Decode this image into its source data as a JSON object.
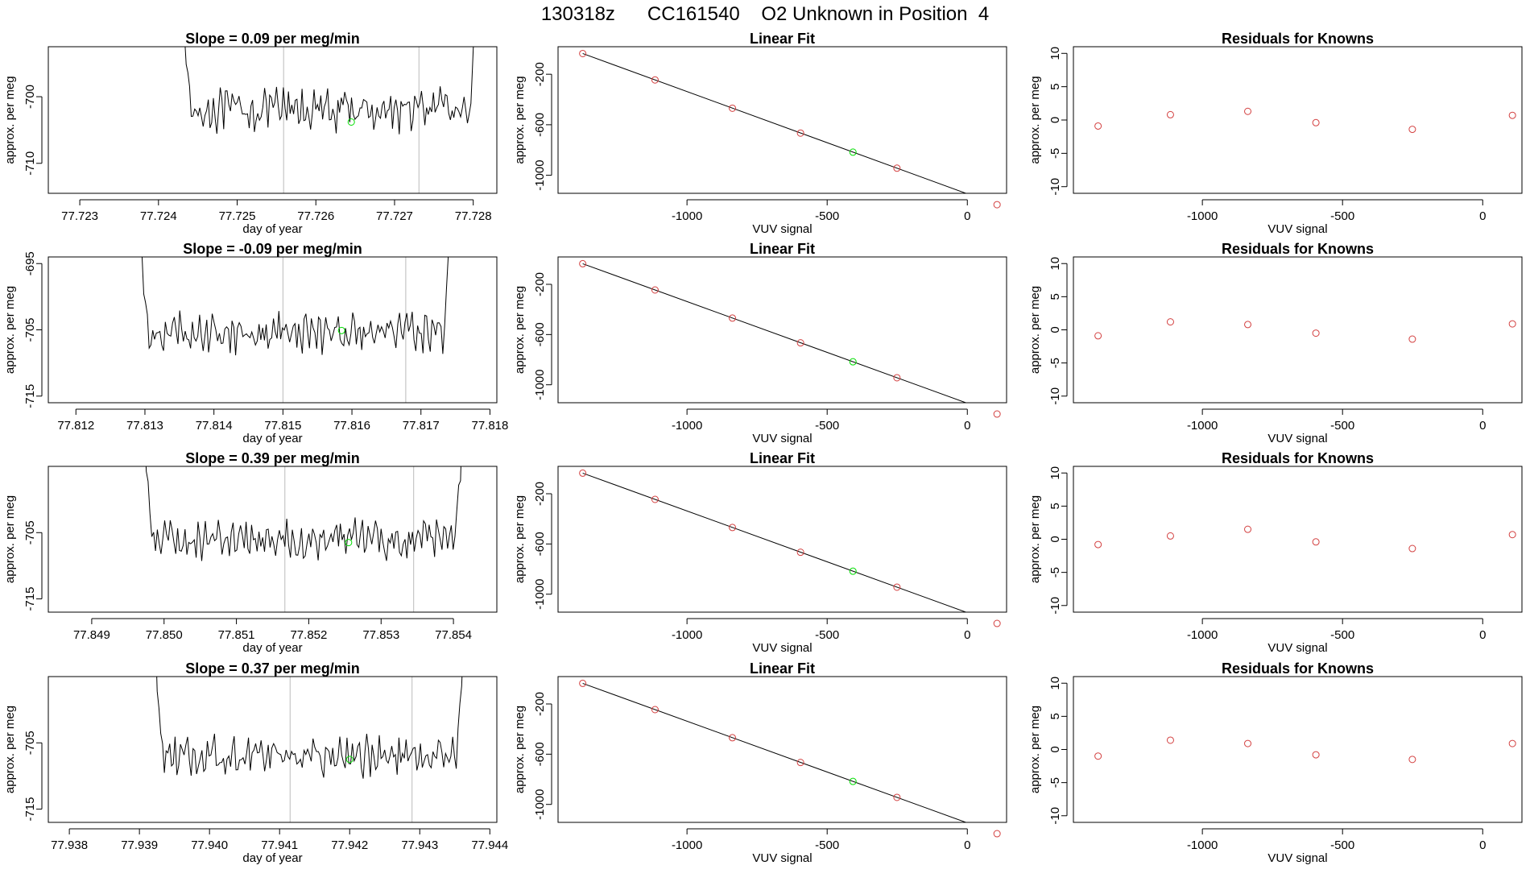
{
  "page_title": "130318z      CC161540    O2 Unknown in Position  4",
  "colors": {
    "trace": "#000000",
    "known_marker": "#d33f3f",
    "unknown_marker": "#00dd00",
    "cut_line": "#bbbbbb"
  },
  "chart_data": [
    {
      "type": "line",
      "row": 0,
      "column": "trace",
      "title": "Slope =  0.09  per meg/min",
      "xlabel": "day of year",
      "ylabel": "approx. per meg",
      "xlim": [
        77.7226,
        77.7283
      ],
      "ylim": [
        -714.5,
        -692.5
      ],
      "xticks": [
        77.723,
        77.724,
        77.725,
        77.726,
        77.727,
        77.728
      ],
      "xtick_labels": [
        "77.723",
        "77.724",
        "77.725",
        "77.726",
        "77.727",
        "77.728"
      ],
      "yticks": [
        -700,
        -710
      ],
      "ytick_labels": [
        "-700",
        "-710"
      ],
      "window": [
        77.7242,
        77.7281
      ],
      "steady_level": -702.0,
      "jitter": 2.3,
      "cut_lines": [
        77.72559,
        77.72731
      ],
      "unknown_marker": {
        "x": 77.72645,
        "y": -703.8
      }
    },
    {
      "type": "scatter",
      "row": 0,
      "column": "fit",
      "title": "Linear Fit",
      "xlabel": "VUV signal",
      "ylabel": "approx. per meg",
      "xlim": [
        -1460,
        140
      ],
      "ylim": [
        -1143,
        18
      ],
      "xticks": [
        -1000,
        -500,
        0
      ],
      "xtick_labels": [
        "-1000",
        "-500",
        "0"
      ],
      "yticks": [
        -200,
        -600,
        -1000
      ],
      "ytick_labels": [
        "-200",
        "-600",
        "-1000"
      ],
      "knowns": [
        {
          "x": -1372,
          "y": -36
        },
        {
          "x": -1114,
          "y": -245
        },
        {
          "x": -838,
          "y": -469
        },
        {
          "x": -595,
          "y": -666
        },
        {
          "x": -251,
          "y": -944
        },
        {
          "x": 106,
          "y": -1233
        }
      ],
      "unknown": {
        "x": -408,
        "y": -817
      },
      "fit_line": {
        "x": [
          -1372,
          106
        ],
        "y": [
          -36,
          -1233
        ]
      }
    },
    {
      "type": "scatter",
      "row": 0,
      "column": "residuals",
      "title": "Residuals for Knowns",
      "xlabel": "VUV signal",
      "ylabel": "approx. per meg",
      "xlim": [
        -1460,
        140
      ],
      "ylim": [
        -11,
        11
      ],
      "xticks": [
        -1000,
        -500,
        0
      ],
      "xtick_labels": [
        "-1000",
        "-500",
        "0"
      ],
      "yticks": [
        10,
        5,
        0,
        -5,
        -10
      ],
      "ytick_labels": [
        "10",
        "5",
        "0",
        "-5",
        "-10"
      ],
      "x": [
        -1372,
        -1114,
        -838,
        -595,
        -251,
        106
      ],
      "y": [
        -0.9,
        0.8,
        1.3,
        -0.4,
        -1.4,
        0.7
      ]
    },
    {
      "type": "line",
      "row": 1,
      "column": "trace",
      "title": "Slope =  -0.09  per meg/min",
      "xlabel": "day of year",
      "ylabel": "approx. per meg",
      "xlim": [
        77.8116,
        77.8181
      ],
      "ylim": [
        -716,
        -694
      ],
      "xticks": [
        77.812,
        77.813,
        77.814,
        77.815,
        77.816,
        77.817,
        77.818
      ],
      "xtick_labels": [
        "77.812",
        "77.813",
        "77.814",
        "77.815",
        "77.816",
        "77.817",
        "77.818"
      ],
      "yticks": [
        -695,
        -705,
        -715
      ],
      "ytick_labels": [
        "-695",
        "-705",
        "-715"
      ],
      "window": [
        77.8128,
        77.8175
      ],
      "steady_level": -705.3,
      "jitter": 2.3,
      "cut_lines": [
        77.815,
        77.81678
      ],
      "unknown_marker": {
        "x": 77.81585,
        "y": -705.1
      }
    },
    {
      "type": "scatter",
      "row": 1,
      "column": "fit",
      "title": "Linear Fit",
      "xlabel": "VUV signal",
      "ylabel": "approx. per meg",
      "xlim": [
        -1460,
        140
      ],
      "ylim": [
        -1143,
        18
      ],
      "xticks": [
        -1000,
        -500,
        0
      ],
      "xtick_labels": [
        "-1000",
        "-500",
        "0"
      ],
      "yticks": [
        -200,
        -600,
        -1000
      ],
      "ytick_labels": [
        "-200",
        "-600",
        "-1000"
      ],
      "knowns": [
        {
          "x": -1372,
          "y": -36
        },
        {
          "x": -1114,
          "y": -245
        },
        {
          "x": -838,
          "y": -469
        },
        {
          "x": -595,
          "y": -666
        },
        {
          "x": -251,
          "y": -944
        },
        {
          "x": 106,
          "y": -1233
        }
      ],
      "unknown": {
        "x": -408,
        "y": -817
      },
      "fit_line": {
        "x": [
          -1372,
          106
        ],
        "y": [
          -36,
          -1233
        ]
      }
    },
    {
      "type": "scatter",
      "row": 1,
      "column": "residuals",
      "title": "Residuals for Knowns",
      "xlabel": "VUV signal",
      "ylabel": "approx. per meg",
      "xlim": [
        -1460,
        140
      ],
      "ylim": [
        -11,
        11
      ],
      "xticks": [
        -1000,
        -500,
        0
      ],
      "xtick_labels": [
        "-1000",
        "-500",
        "0"
      ],
      "yticks": [
        10,
        5,
        0,
        -5,
        -10
      ],
      "ytick_labels": [
        "10",
        "5",
        "0",
        "-5",
        "-10"
      ],
      "x": [
        -1372,
        -1114,
        -838,
        -595,
        -251,
        106
      ],
      "y": [
        -0.9,
        1.2,
        0.8,
        -0.5,
        -1.4,
        0.9
      ]
    },
    {
      "type": "line",
      "row": 2,
      "column": "trace",
      "title": "Slope =  0.39  per meg/min",
      "xlabel": "day of year",
      "ylabel": "approx. per meg",
      "xlim": [
        77.8484,
        77.8546
      ],
      "ylim": [
        -717,
        -695
      ],
      "xticks": [
        77.849,
        77.85,
        77.851,
        77.852,
        77.853,
        77.854
      ],
      "xtick_labels": [
        "77.849",
        "77.850",
        "77.851",
        "77.852",
        "77.853",
        "77.854"
      ],
      "yticks": [
        -705,
        -715
      ],
      "ytick_labels": [
        "-705",
        "-715"
      ],
      "window": [
        77.8496,
        77.8542
      ],
      "steady_level": -706.0,
      "jitter": 2.2,
      "cut_lines": [
        77.85167,
        77.85345
      ],
      "unknown_marker": {
        "x": 77.85255,
        "y": -706.5
      }
    },
    {
      "type": "scatter",
      "row": 2,
      "column": "fit",
      "title": "Linear Fit",
      "xlabel": "VUV signal",
      "ylabel": "approx. per meg",
      "xlim": [
        -1460,
        140
      ],
      "ylim": [
        -1143,
        18
      ],
      "xticks": [
        -1000,
        -500,
        0
      ],
      "xtick_labels": [
        "-1000",
        "-500",
        "0"
      ],
      "yticks": [
        -200,
        -600,
        -1000
      ],
      "ytick_labels": [
        "-200",
        "-600",
        "-1000"
      ],
      "knowns": [
        {
          "x": -1372,
          "y": -36
        },
        {
          "x": -1114,
          "y": -245
        },
        {
          "x": -838,
          "y": -469
        },
        {
          "x": -595,
          "y": -666
        },
        {
          "x": -251,
          "y": -944
        },
        {
          "x": 106,
          "y": -1233
        }
      ],
      "unknown": {
        "x": -408,
        "y": -817
      },
      "fit_line": {
        "x": [
          -1372,
          106
        ],
        "y": [
          -36,
          -1233
        ]
      }
    },
    {
      "type": "scatter",
      "row": 2,
      "column": "residuals",
      "title": "Residuals for Knowns",
      "xlabel": "VUV signal",
      "ylabel": "approx. per meg",
      "xlim": [
        -1460,
        140
      ],
      "ylim": [
        -11,
        11
      ],
      "xticks": [
        -1000,
        -500,
        0
      ],
      "xtick_labels": [
        "-1000",
        "-500",
        "0"
      ],
      "yticks": [
        10,
        5,
        0,
        -5,
        -10
      ],
      "ytick_labels": [
        "10",
        "5",
        "0",
        "-5",
        "-10"
      ],
      "x": [
        -1372,
        -1114,
        -838,
        -595,
        -251,
        106
      ],
      "y": [
        -0.8,
        0.5,
        1.5,
        -0.4,
        -1.4,
        0.7
      ]
    },
    {
      "type": "line",
      "row": 3,
      "column": "trace",
      "title": "Slope =  0.37  per meg/min",
      "xlabel": "day of year",
      "ylabel": "approx. per meg",
      "xlim": [
        77.9377,
        77.9441
      ],
      "ylim": [
        -717,
        -695
      ],
      "xticks": [
        77.938,
        77.939,
        77.94,
        77.941,
        77.942,
        77.943,
        77.944
      ],
      "xtick_labels": [
        "77.938",
        "77.939",
        "77.940",
        "77.941",
        "77.942",
        "77.943",
        "77.944"
      ],
      "yticks": [
        -705,
        -715
      ],
      "ytick_labels": [
        "-705",
        "-715"
      ],
      "window": [
        77.9391,
        77.9437
      ],
      "steady_level": -707.0,
      "jitter": 2.2,
      "cut_lines": [
        77.94115,
        77.94289
      ],
      "unknown_marker": {
        "x": 77.942,
        "y": -707.5
      }
    },
    {
      "type": "scatter",
      "row": 3,
      "column": "fit",
      "title": "Linear Fit",
      "xlabel": "VUV signal",
      "ylabel": "approx. per meg",
      "xlim": [
        -1460,
        140
      ],
      "ylim": [
        -1143,
        18
      ],
      "xticks": [
        -1000,
        -500,
        0
      ],
      "xtick_labels": [
        "-1000",
        "-500",
        "0"
      ],
      "yticks": [
        -200,
        -600,
        -1000
      ],
      "ytick_labels": [
        "-200",
        "-600",
        "-1000"
      ],
      "knowns": [
        {
          "x": -1372,
          "y": -36
        },
        {
          "x": -1114,
          "y": -245
        },
        {
          "x": -838,
          "y": -469
        },
        {
          "x": -595,
          "y": -666
        },
        {
          "x": -251,
          "y": -944
        },
        {
          "x": 106,
          "y": -1233
        }
      ],
      "unknown": {
        "x": -408,
        "y": -817
      },
      "fit_line": {
        "x": [
          -1372,
          106
        ],
        "y": [
          -36,
          -1233
        ]
      }
    },
    {
      "type": "scatter",
      "row": 3,
      "column": "residuals",
      "title": "Residuals for Knowns",
      "xlabel": "VUV signal",
      "ylabel": "approx. per meg",
      "xlim": [
        -1460,
        140
      ],
      "ylim": [
        -11,
        11
      ],
      "xticks": [
        -1000,
        -500,
        0
      ],
      "xtick_labels": [
        "-1000",
        "-500",
        "0"
      ],
      "yticks": [
        10,
        5,
        0,
        -5,
        -10
      ],
      "ytick_labels": [
        "10",
        "5",
        "0",
        "-5",
        "-10"
      ],
      "x": [
        -1372,
        -1114,
        -838,
        -595,
        -251,
        106
      ],
      "y": [
        -1.0,
        1.4,
        0.9,
        -0.8,
        -1.5,
        0.9
      ]
    }
  ]
}
